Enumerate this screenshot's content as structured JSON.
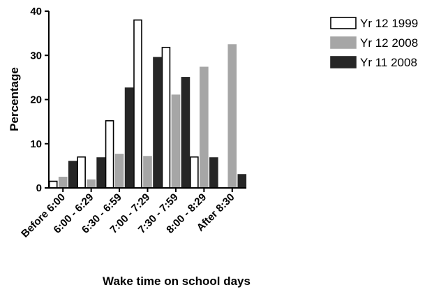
{
  "chart_data": {
    "type": "bar",
    "title": "",
    "xlabel": "Wake time on school days",
    "ylabel": "Percentage",
    "ylim": [
      0,
      40
    ],
    "yticks": [
      0,
      10,
      20,
      30,
      40
    ],
    "grid": false,
    "legend_position": "top-right",
    "categories": [
      "Before 6:00",
      "6:00 - 6:29",
      "6:30 - 6:59",
      "7:00 - 7:29",
      "7:30 - 7:59",
      "8:00 - 8:29",
      "After 8:30"
    ],
    "series": [
      {
        "name": "Yr 12 1999",
        "fill": "#ffffff",
        "stroke": "#000000",
        "values": [
          1.5,
          7,
          15.2,
          38,
          31.8,
          7,
          0
        ]
      },
      {
        "name": "Yr 12 2008",
        "fill": "#a6a6a6",
        "stroke": "#a6a6a6",
        "values": [
          2.4,
          1.8,
          7.6,
          7.1,
          21,
          27.3,
          32.4
        ]
      },
      {
        "name": "Yr 11 2008",
        "fill": "#262626",
        "stroke": "#262626",
        "values": [
          6,
          6.8,
          22.6,
          29.5,
          25,
          6.8,
          3
        ]
      }
    ]
  }
}
